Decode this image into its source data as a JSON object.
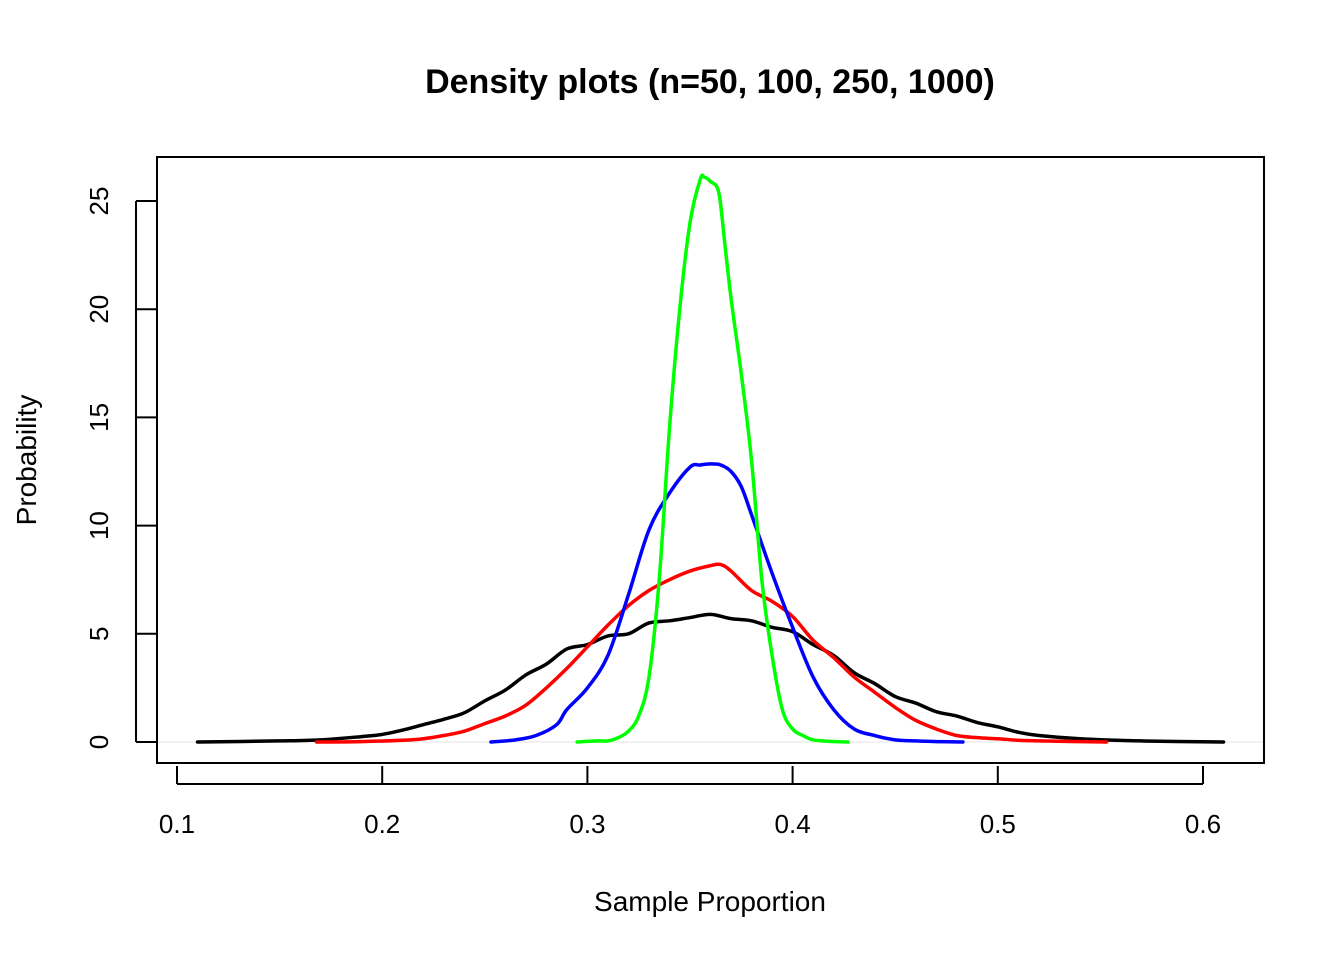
{
  "chart_data": {
    "type": "line",
    "title": "Density plots (n=50, 100, 250, 1000)",
    "xlabel": "Sample Proportion",
    "ylabel": "Probability",
    "xlim": [
      0.1,
      0.61
    ],
    "ylim": [
      -1,
      27
    ],
    "x_ticks": [
      0.1,
      0.2,
      0.3,
      0.4,
      0.5,
      0.6
    ],
    "x_tick_labels": [
      "0.1",
      "0.2",
      "0.3",
      "0.4",
      "0.5",
      "0.6"
    ],
    "y_ticks": [
      0,
      5,
      10,
      15,
      20,
      25
    ],
    "y_tick_labels": [
      "0",
      "5",
      "10",
      "15",
      "20",
      "25"
    ],
    "grid": false,
    "legend": "none",
    "baseline_color": "#e6e6e6",
    "series": [
      {
        "color": "#000000",
        "x": [
          0.11,
          0.15,
          0.17,
          0.19,
          0.2,
          0.21,
          0.22,
          0.23,
          0.24,
          0.25,
          0.26,
          0.27,
          0.28,
          0.29,
          0.3,
          0.31,
          0.32,
          0.33,
          0.34,
          0.35,
          0.36,
          0.37,
          0.38,
          0.39,
          0.4,
          0.41,
          0.42,
          0.43,
          0.44,
          0.45,
          0.46,
          0.47,
          0.48,
          0.49,
          0.5,
          0.51,
          0.52,
          0.54,
          0.57,
          0.61
        ],
        "y": [
          0.0,
          0.05,
          0.1,
          0.25,
          0.35,
          0.55,
          0.8,
          1.05,
          1.35,
          1.9,
          2.4,
          3.1,
          3.6,
          4.3,
          4.5,
          4.9,
          5.0,
          5.5,
          5.6,
          5.75,
          5.9,
          5.7,
          5.6,
          5.3,
          5.1,
          4.5,
          4.0,
          3.2,
          2.7,
          2.1,
          1.8,
          1.4,
          1.2,
          0.9,
          0.7,
          0.45,
          0.3,
          0.15,
          0.05,
          0.0
        ]
      },
      {
        "color": "#ff0000",
        "x": [
          0.168,
          0.19,
          0.21,
          0.22,
          0.23,
          0.24,
          0.25,
          0.26,
          0.27,
          0.28,
          0.29,
          0.3,
          0.31,
          0.32,
          0.33,
          0.34,
          0.35,
          0.36,
          0.365,
          0.37,
          0.38,
          0.39,
          0.4,
          0.41,
          0.42,
          0.43,
          0.44,
          0.45,
          0.46,
          0.47,
          0.48,
          0.49,
          0.5,
          0.51,
          0.52,
          0.553
        ],
        "y": [
          0.0,
          0.02,
          0.08,
          0.15,
          0.3,
          0.5,
          0.85,
          1.2,
          1.7,
          2.5,
          3.4,
          4.4,
          5.4,
          6.3,
          7.0,
          7.5,
          7.9,
          8.15,
          8.2,
          7.9,
          7.0,
          6.5,
          5.8,
          4.7,
          3.9,
          3.0,
          2.3,
          1.6,
          1.0,
          0.6,
          0.3,
          0.2,
          0.15,
          0.08,
          0.05,
          0.0
        ]
      },
      {
        "color": "#0000ff",
        "x": [
          0.253,
          0.265,
          0.275,
          0.285,
          0.29,
          0.3,
          0.31,
          0.32,
          0.33,
          0.34,
          0.35,
          0.355,
          0.36,
          0.365,
          0.37,
          0.375,
          0.38,
          0.39,
          0.4,
          0.41,
          0.42,
          0.43,
          0.44,
          0.45,
          0.46,
          0.47,
          0.483
        ],
        "y": [
          0.0,
          0.1,
          0.3,
          0.8,
          1.5,
          2.5,
          4.0,
          6.8,
          9.8,
          11.5,
          12.7,
          12.8,
          12.85,
          12.8,
          12.5,
          11.8,
          10.5,
          7.8,
          5.3,
          3.0,
          1.5,
          0.6,
          0.3,
          0.1,
          0.05,
          0.02,
          0.0
        ]
      },
      {
        "color": "#00ff00",
        "x": [
          0.295,
          0.305,
          0.31,
          0.315,
          0.32,
          0.325,
          0.33,
          0.335,
          0.34,
          0.345,
          0.35,
          0.355,
          0.357,
          0.36,
          0.364,
          0.367,
          0.37,
          0.375,
          0.38,
          0.385,
          0.39,
          0.395,
          0.4,
          0.405,
          0.41,
          0.418,
          0.427
        ],
        "y": [
          0.0,
          0.05,
          0.05,
          0.2,
          0.5,
          1.2,
          3.0,
          7.5,
          14.5,
          20.0,
          24.0,
          26.0,
          26.1,
          25.9,
          25.4,
          23.0,
          20.5,
          17.0,
          13.0,
          7.5,
          4.0,
          1.5,
          0.6,
          0.3,
          0.1,
          0.03,
          0.0
        ]
      }
    ]
  }
}
